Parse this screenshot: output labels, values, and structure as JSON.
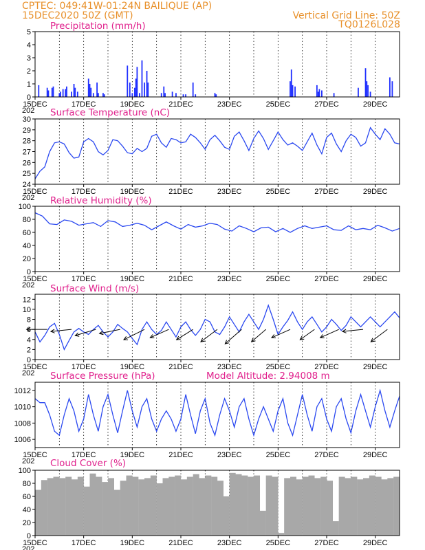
{
  "header": {
    "line1": "CPTEC:   049:41W-01:24N   BAILIQUE  (AP)",
    "line2": "15DEC2020  50Z  (GMT)",
    "grid_note": "Vertical Grid Line: 50Z",
    "code": "TQ0126L028"
  },
  "x_axis": {
    "ticks": [
      "15DEC",
      "17DEC",
      "19DEC",
      "21DEC",
      "23DEC",
      "25DEC",
      "27DEC",
      "29DEC"
    ],
    "year_fragment": "202",
    "range_days": [
      0,
      15
    ]
  },
  "colors": {
    "line": "#2a48f0",
    "precip_bar": "#1f2fff",
    "cloud_bar": "#a8a8a8",
    "header": "#e8902a",
    "title": "#e0208c"
  },
  "chart_data": [
    {
      "type": "bar",
      "title": "Precipitation (mm/h)",
      "ylim": [
        0,
        5
      ],
      "yticks": [
        "0",
        "1",
        "2",
        "3",
        "4",
        "5"
      ],
      "x": [
        0.15,
        0.5,
        0.55,
        0.7,
        0.75,
        1.0,
        1.05,
        1.15,
        1.25,
        1.3,
        1.5,
        1.6,
        1.65,
        1.75,
        2.2,
        2.25,
        2.3,
        2.4,
        2.55,
        2.6,
        2.8,
        2.85,
        3.8,
        3.9,
        4.0,
        4.1,
        4.15,
        4.2,
        4.3,
        4.4,
        4.5,
        4.6,
        4.65,
        5.2,
        5.3,
        5.35,
        5.65,
        5.8,
        6.1,
        6.2,
        6.5,
        6.6,
        7.4,
        7.45,
        10.5,
        10.55,
        10.6,
        10.7,
        11.6,
        11.65,
        11.7,
        11.8,
        12.3,
        13.3,
        13.6,
        13.65,
        13.7,
        13.8,
        14.6,
        14.7
      ],
      "values": [
        0.9,
        0.7,
        0.5,
        0.7,
        0.8,
        0.3,
        0.4,
        0.6,
        0.6,
        0.8,
        0.4,
        1.0,
        0.7,
        0.4,
        1.4,
        1.0,
        0.7,
        0.3,
        1.1,
        0.3,
        0.3,
        0.2,
        2.4,
        1.1,
        0.3,
        0.7,
        1.4,
        2.3,
        0.3,
        2.8,
        1.1,
        2.0,
        1.1,
        0.3,
        0.8,
        0.3,
        0.4,
        0.3,
        0.2,
        0.2,
        1.1,
        0.2,
        0.3,
        0.2,
        1.2,
        2.1,
        0.9,
        0.8,
        0.9,
        0.4,
        0.6,
        0.5,
        0.3,
        0.7,
        2.2,
        1.2,
        0.9,
        0.4,
        1.5,
        1.2
      ]
    },
    {
      "type": "line",
      "title": "Surface Temperature (nC)",
      "ylim": [
        24,
        30
      ],
      "yticks": [
        "24",
        "25",
        "26",
        "27",
        "28",
        "29",
        "30"
      ],
      "x": [
        0,
        0.2,
        0.4,
        0.6,
        0.8,
        1.0,
        1.2,
        1.4,
        1.6,
        1.8,
        2.0,
        2.2,
        2.4,
        2.6,
        2.8,
        3.0,
        3.2,
        3.4,
        3.6,
        3.8,
        4.0,
        4.2,
        4.4,
        4.6,
        4.8,
        5.0,
        5.2,
        5.4,
        5.6,
        5.8,
        6.0,
        6.2,
        6.4,
        6.6,
        6.8,
        7.0,
        7.2,
        7.4,
        7.6,
        7.8,
        8.0,
        8.2,
        8.4,
        8.6,
        8.8,
        9.0,
        9.2,
        9.4,
        9.6,
        9.8,
        10.0,
        10.2,
        10.4,
        10.6,
        10.8,
        11.0,
        11.2,
        11.4,
        11.6,
        11.8,
        12.0,
        12.2,
        12.4,
        12.6,
        12.8,
        13.0,
        13.2,
        13.4,
        13.6,
        13.8,
        14.0,
        14.2,
        14.4,
        14.6,
        14.8,
        15.0
      ],
      "values": [
        24.5,
        25.2,
        25.6,
        27.0,
        27.8,
        27.9,
        27.7,
        26.9,
        26.4,
        26.5,
        27.9,
        28.2,
        27.9,
        27.0,
        26.7,
        27.1,
        28.1,
        28.0,
        27.5,
        26.9,
        26.8,
        27.3,
        27.0,
        27.3,
        28.4,
        28.6,
        27.8,
        27.4,
        28.2,
        28.1,
        27.8,
        27.9,
        28.6,
        28.3,
        27.8,
        27.2,
        28.1,
        28.5,
        28.0,
        27.4,
        27.2,
        28.4,
        28.8,
        28.0,
        27.1,
        28.2,
        28.9,
        28.2,
        27.2,
        28.0,
        28.8,
        28.1,
        27.6,
        27.8,
        27.5,
        27.1,
        27.9,
        28.7,
        27.6,
        26.8,
        28.3,
        28.7,
        27.7,
        27.0,
        28.0,
        28.6,
        28.3,
        27.5,
        27.8,
        29.2,
        28.6,
        28.1,
        29.1,
        28.6,
        27.8,
        27.7
      ]
    },
    {
      "type": "line",
      "title": "Relative Humidity (%)",
      "ylim": [
        0,
        100
      ],
      "yticks": [
        "0",
        "20",
        "40",
        "60",
        "80",
        "100"
      ],
      "x": [
        0,
        0.3,
        0.6,
        0.9,
        1.2,
        1.5,
        1.8,
        2.1,
        2.4,
        2.7,
        3.0,
        3.3,
        3.6,
        3.9,
        4.2,
        4.5,
        4.8,
        5.1,
        5.4,
        5.7,
        6.0,
        6.3,
        6.6,
        6.9,
        7.2,
        7.5,
        7.8,
        8.1,
        8.4,
        8.7,
        9.0,
        9.3,
        9.6,
        9.9,
        10.2,
        10.5,
        10.8,
        11.1,
        11.4,
        11.7,
        12.0,
        12.3,
        12.6,
        12.9,
        13.2,
        13.5,
        13.8,
        14.1,
        14.4,
        14.7,
        15.0
      ],
      "values": [
        90,
        85,
        73,
        72,
        79,
        77,
        71,
        73,
        75,
        69,
        78,
        76,
        69,
        71,
        74,
        71,
        64,
        70,
        76,
        70,
        65,
        72,
        68,
        70,
        74,
        72,
        65,
        62,
        70,
        66,
        61,
        67,
        68,
        61,
        66,
        60,
        66,
        70,
        66,
        68,
        70,
        64,
        63,
        70,
        64,
        66,
        64,
        71,
        67,
        62,
        66
      ]
    },
    {
      "type": "line",
      "title": "Surface Wind (m/s)",
      "ylim": [
        0,
        13
      ],
      "yticks": [
        "0",
        "2",
        "4",
        "6",
        "8",
        "10",
        "12"
      ],
      "x": [
        0,
        0.2,
        0.4,
        0.6,
        0.8,
        1.0,
        1.2,
        1.4,
        1.6,
        1.8,
        2.0,
        2.2,
        2.4,
        2.6,
        2.8,
        3.0,
        3.2,
        3.4,
        3.6,
        3.8,
        4.0,
        4.2,
        4.4,
        4.6,
        4.8,
        5.0,
        5.2,
        5.4,
        5.6,
        5.8,
        6.0,
        6.2,
        6.4,
        6.6,
        6.8,
        7.0,
        7.2,
        7.4,
        7.6,
        7.8,
        8.0,
        8.2,
        8.4,
        8.6,
        8.8,
        9.0,
        9.2,
        9.4,
        9.6,
        9.8,
        10.0,
        10.2,
        10.4,
        10.6,
        10.8,
        11.0,
        11.2,
        11.4,
        11.6,
        11.8,
        12.0,
        12.2,
        12.4,
        12.6,
        12.8,
        13.0,
        13.2,
        13.4,
        13.6,
        13.8,
        14.0,
        14.2,
        14.4,
        14.6,
        14.8,
        15.0
      ],
      "values": [
        5.5,
        3.5,
        4.8,
        6.5,
        7.2,
        5.0,
        2.0,
        3.8,
        5.5,
        6.2,
        5.5,
        5.0,
        6.0,
        6.8,
        5.5,
        4.5,
        5.5,
        7.0,
        6.2,
        5.5,
        4.2,
        3.0,
        6.0,
        7.5,
        6.0,
        5.0,
        5.8,
        7.5,
        6.0,
        4.5,
        6.5,
        7.5,
        6.0,
        4.8,
        6.0,
        8.0,
        7.5,
        5.5,
        5.0,
        6.5,
        8.5,
        7.0,
        5.5,
        7.5,
        9.0,
        7.5,
        6.0,
        8.0,
        10.8,
        8.0,
        5.0,
        6.5,
        7.8,
        9.5,
        7.5,
        6.0,
        7.5,
        8.5,
        7.0,
        5.5,
        6.5,
        8.0,
        7.0,
        5.8,
        6.8,
        8.5,
        7.5,
        6.5,
        7.5,
        8.5,
        7.5,
        6.5,
        7.5,
        8.5,
        9.5,
        8.3
      ],
      "vectors": [
        {
          "x": 0.5,
          "u": -1.0,
          "v": 0.0
        },
        {
          "x": 1.5,
          "u": -1.0,
          "v": -0.1
        },
        {
          "x": 2.5,
          "u": -1.0,
          "v": -0.3
        },
        {
          "x": 3.5,
          "u": -1.0,
          "v": -0.2
        },
        {
          "x": 4.5,
          "u": -1.0,
          "v": -0.5
        },
        {
          "x": 5.5,
          "u": -0.9,
          "v": -0.4
        },
        {
          "x": 6.5,
          "u": -0.8,
          "v": -0.5
        },
        {
          "x": 7.5,
          "u": -0.8,
          "v": -0.6
        },
        {
          "x": 8.5,
          "u": -0.8,
          "v": -0.7
        },
        {
          "x": 9.5,
          "u": -0.7,
          "v": -0.6
        },
        {
          "x": 10.5,
          "u": -0.9,
          "v": -0.4
        },
        {
          "x": 11.5,
          "u": -0.7,
          "v": -0.5
        },
        {
          "x": 12.5,
          "u": -0.9,
          "v": -0.4
        },
        {
          "x": 13.5,
          "u": -1.0,
          "v": -0.1
        },
        {
          "x": 14.5,
          "u": -0.8,
          "v": -0.6
        }
      ]
    },
    {
      "type": "line",
      "title": "Surface Pressure (hPa)",
      "subtitle": "Model Altitude: 2.94008 m",
      "ylim": [
        1005,
        1013
      ],
      "yticks": [
        "1006",
        "1008",
        "1010",
        "1012"
      ],
      "x": [
        0,
        0.2,
        0.4,
        0.6,
        0.8,
        1.0,
        1.2,
        1.4,
        1.6,
        1.8,
        2.0,
        2.2,
        2.4,
        2.6,
        2.8,
        3.0,
        3.2,
        3.4,
        3.6,
        3.8,
        4.0,
        4.2,
        4.4,
        4.6,
        4.8,
        5.0,
        5.2,
        5.4,
        5.6,
        5.8,
        6.0,
        6.2,
        6.4,
        6.6,
        6.8,
        7.0,
        7.2,
        7.4,
        7.6,
        7.8,
        8.0,
        8.2,
        8.4,
        8.6,
        8.8,
        9.0,
        9.2,
        9.4,
        9.6,
        9.8,
        10.0,
        10.2,
        10.4,
        10.6,
        10.8,
        11.0,
        11.2,
        11.4,
        11.6,
        11.8,
        12.0,
        12.2,
        12.4,
        12.6,
        12.8,
        13.0,
        13.2,
        13.4,
        13.6,
        13.8,
        14.0,
        14.2,
        14.4,
        14.6,
        14.8,
        15.0
      ],
      "values": [
        1011,
        1010.5,
        1010.5,
        1009,
        1007,
        1006.5,
        1009,
        1011,
        1009.5,
        1007,
        1008.5,
        1011.5,
        1009,
        1007,
        1010,
        1011.5,
        1009,
        1006.8,
        1009.5,
        1012,
        1009.5,
        1007.5,
        1010,
        1011,
        1008.5,
        1007,
        1008.5,
        1009.5,
        1008.5,
        1007,
        1008.5,
        1011.5,
        1009,
        1006.7,
        1009.5,
        1011,
        1008,
        1006.5,
        1009,
        1011,
        1009.5,
        1007.5,
        1010,
        1011,
        1008.5,
        1006.5,
        1008.5,
        1010,
        1008.5,
        1007,
        1009.5,
        1011,
        1008,
        1006.5,
        1009,
        1011.5,
        1009,
        1007,
        1010,
        1011,
        1008.5,
        1007,
        1010,
        1011,
        1008.5,
        1006.8,
        1009.5,
        1011.5,
        1009.5,
        1007.5,
        1010,
        1012,
        1009.5,
        1007.5,
        1009.5,
        1011.3
      ]
    },
    {
      "type": "bar",
      "title": "Cloud Cover (%)",
      "ylim": [
        0,
        100
      ],
      "yticks": [
        "0",
        "20",
        "40",
        "60",
        "80",
        "100"
      ],
      "x": [
        0.0,
        0.25,
        0.5,
        0.75,
        1.0,
        1.25,
        1.5,
        1.75,
        2.0,
        2.25,
        2.5,
        2.75,
        3.0,
        3.25,
        3.5,
        3.75,
        4.0,
        4.25,
        4.5,
        4.75,
        5.0,
        5.25,
        5.5,
        5.75,
        6.0,
        6.25,
        6.5,
        6.75,
        7.0,
        7.25,
        7.5,
        7.75,
        8.0,
        8.25,
        8.5,
        8.75,
        9.0,
        9.25,
        9.5,
        9.75,
        10.0,
        10.25,
        10.5,
        10.75,
        11.0,
        11.25,
        11.5,
        11.75,
        12.0,
        12.25,
        12.5,
        12.75,
        13.0,
        13.25,
        13.5,
        13.75,
        14.0,
        14.25,
        14.5,
        14.75
      ],
      "values": [
        70,
        85,
        88,
        90,
        88,
        90,
        86,
        90,
        75,
        95,
        90,
        82,
        88,
        70,
        84,
        92,
        90,
        86,
        88,
        92,
        80,
        88,
        90,
        92,
        86,
        90,
        94,
        88,
        92,
        90,
        84,
        60,
        96,
        94,
        92,
        90,
        92,
        38,
        92,
        90,
        4,
        88,
        90,
        86,
        90,
        92,
        88,
        90,
        84,
        22,
        90,
        88,
        90,
        86,
        88,
        92,
        90,
        86,
        88,
        90
      ]
    }
  ]
}
